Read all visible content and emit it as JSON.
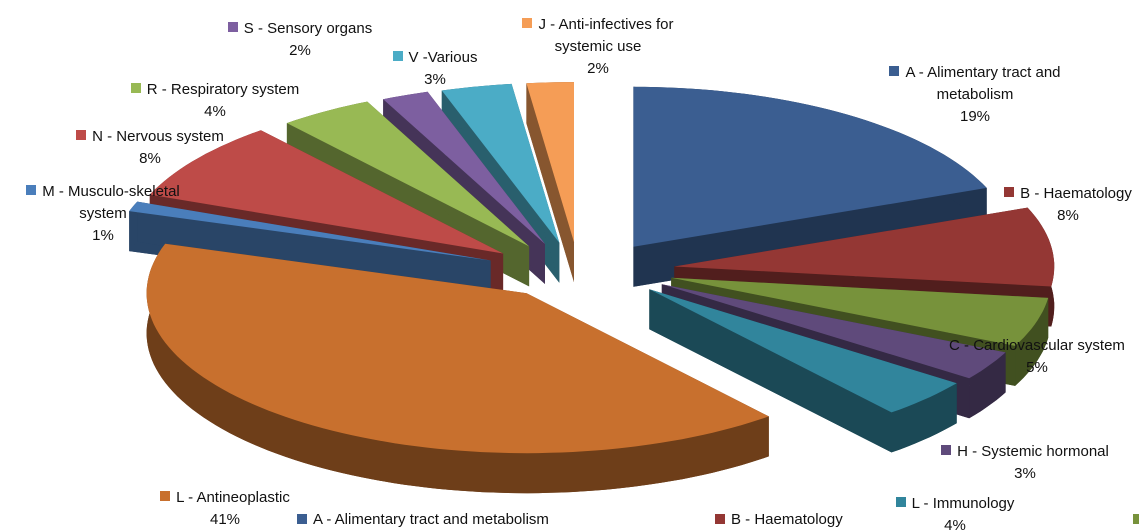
{
  "chart_data": {
    "type": "pie",
    "categories": [
      "A - Alimentary tract and metabolism",
      "B - Haematology",
      "C - Cardiovascular system",
      "H - Systemic hormonal",
      "L - Immunology",
      "L  - Antineoplastic",
      "M - Musculo-skeletal system",
      "N - Nervous system",
      "R - Respiratory system",
      "S - Sensory organs",
      "V -Various",
      "J - Anti-infectives for systemic use"
    ],
    "values": [
      19,
      8,
      5,
      3,
      4,
      41,
      1,
      8,
      4,
      2,
      3,
      2
    ],
    "value_labels": [
      "19%",
      "8%",
      "5%",
      "3%",
      "4%",
      "41%",
      "1%",
      "8%",
      "4%",
      "2%",
      "3%",
      "2%"
    ],
    "colors": [
      "#3b5e91",
      "#943734",
      "#77923b",
      "#5f4a7b",
      "#31859c",
      "#c8702e",
      "#4a7ebb",
      "#be4b48",
      "#98b954",
      "#7d5fa0",
      "#4bacc6",
      "#f59d56"
    ],
    "legend": "bottom"
  }
}
